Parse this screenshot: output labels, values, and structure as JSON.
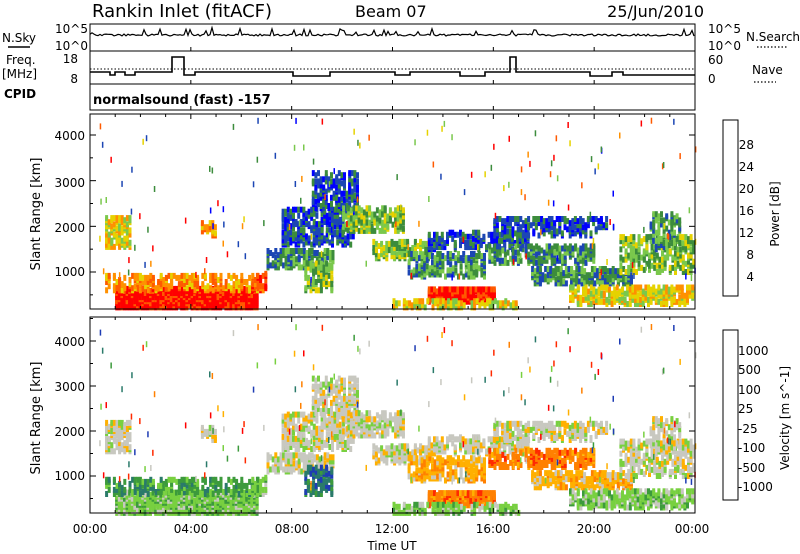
{
  "header": {
    "station": "Rankin Inlet (fitACF)",
    "beam": "Beam 07",
    "date": "25/Jun/2010"
  },
  "strip_panels": {
    "nsky_label": "N.Sky",
    "nsky_ticks": [
      "10^5",
      "10^0"
    ],
    "nsearch_label": "N.Search",
    "nsearch_ticks": [
      "10^5",
      "10^0"
    ],
    "freq_label_top": "Freq.",
    "freq_label_unit": "[MHz]",
    "freq_ticks": [
      "18",
      "8"
    ],
    "nave_label": "Nave",
    "nave_ticks": [
      "60",
      "0"
    ],
    "cpid_label": "CPID",
    "cpid_text": "normalsound (fast) -157"
  },
  "chart_data": [
    {
      "type": "heatmap",
      "name": "power-panel",
      "ylabel": "Slant Range [km]",
      "y_ticks": [
        "1000",
        "2000",
        "3000",
        "4000"
      ],
      "colorbar_label": "Power [dB]",
      "colorbar_ticks": [
        "28",
        "24",
        "20",
        "16",
        "12",
        "8",
        "4"
      ],
      "colors": [
        "#0000ff",
        "#1c46b4",
        "#3c8c3c",
        "#7ac84c",
        "#e6d200",
        "#ff9000",
        "#ff5a00",
        "#ff0000"
      ]
    },
    {
      "type": "heatmap",
      "name": "velocity-panel",
      "ylabel": "Slant Range [km]",
      "y_ticks": [
        "1000",
        "2000",
        "3000",
        "4000"
      ],
      "colorbar_label": "Velocity [m s^-1]",
      "colorbar_ticks": [
        "1000",
        "500",
        "100",
        "25",
        "-25",
        "-100",
        "-500",
        "-1000"
      ],
      "colors": [
        "#1e3cb4",
        "#2a7a6a",
        "#3c9a3c",
        "#78d040",
        "#c8c8c0",
        "#ffb000",
        "#ff8000",
        "#ff2a00",
        "#ff0000"
      ]
    }
  ],
  "x_axis": {
    "ticks": [
      "00:00",
      "04:00",
      "08:00",
      "12:00",
      "16:00",
      "20:00",
      "00:00"
    ],
    "label": "Time UT"
  }
}
